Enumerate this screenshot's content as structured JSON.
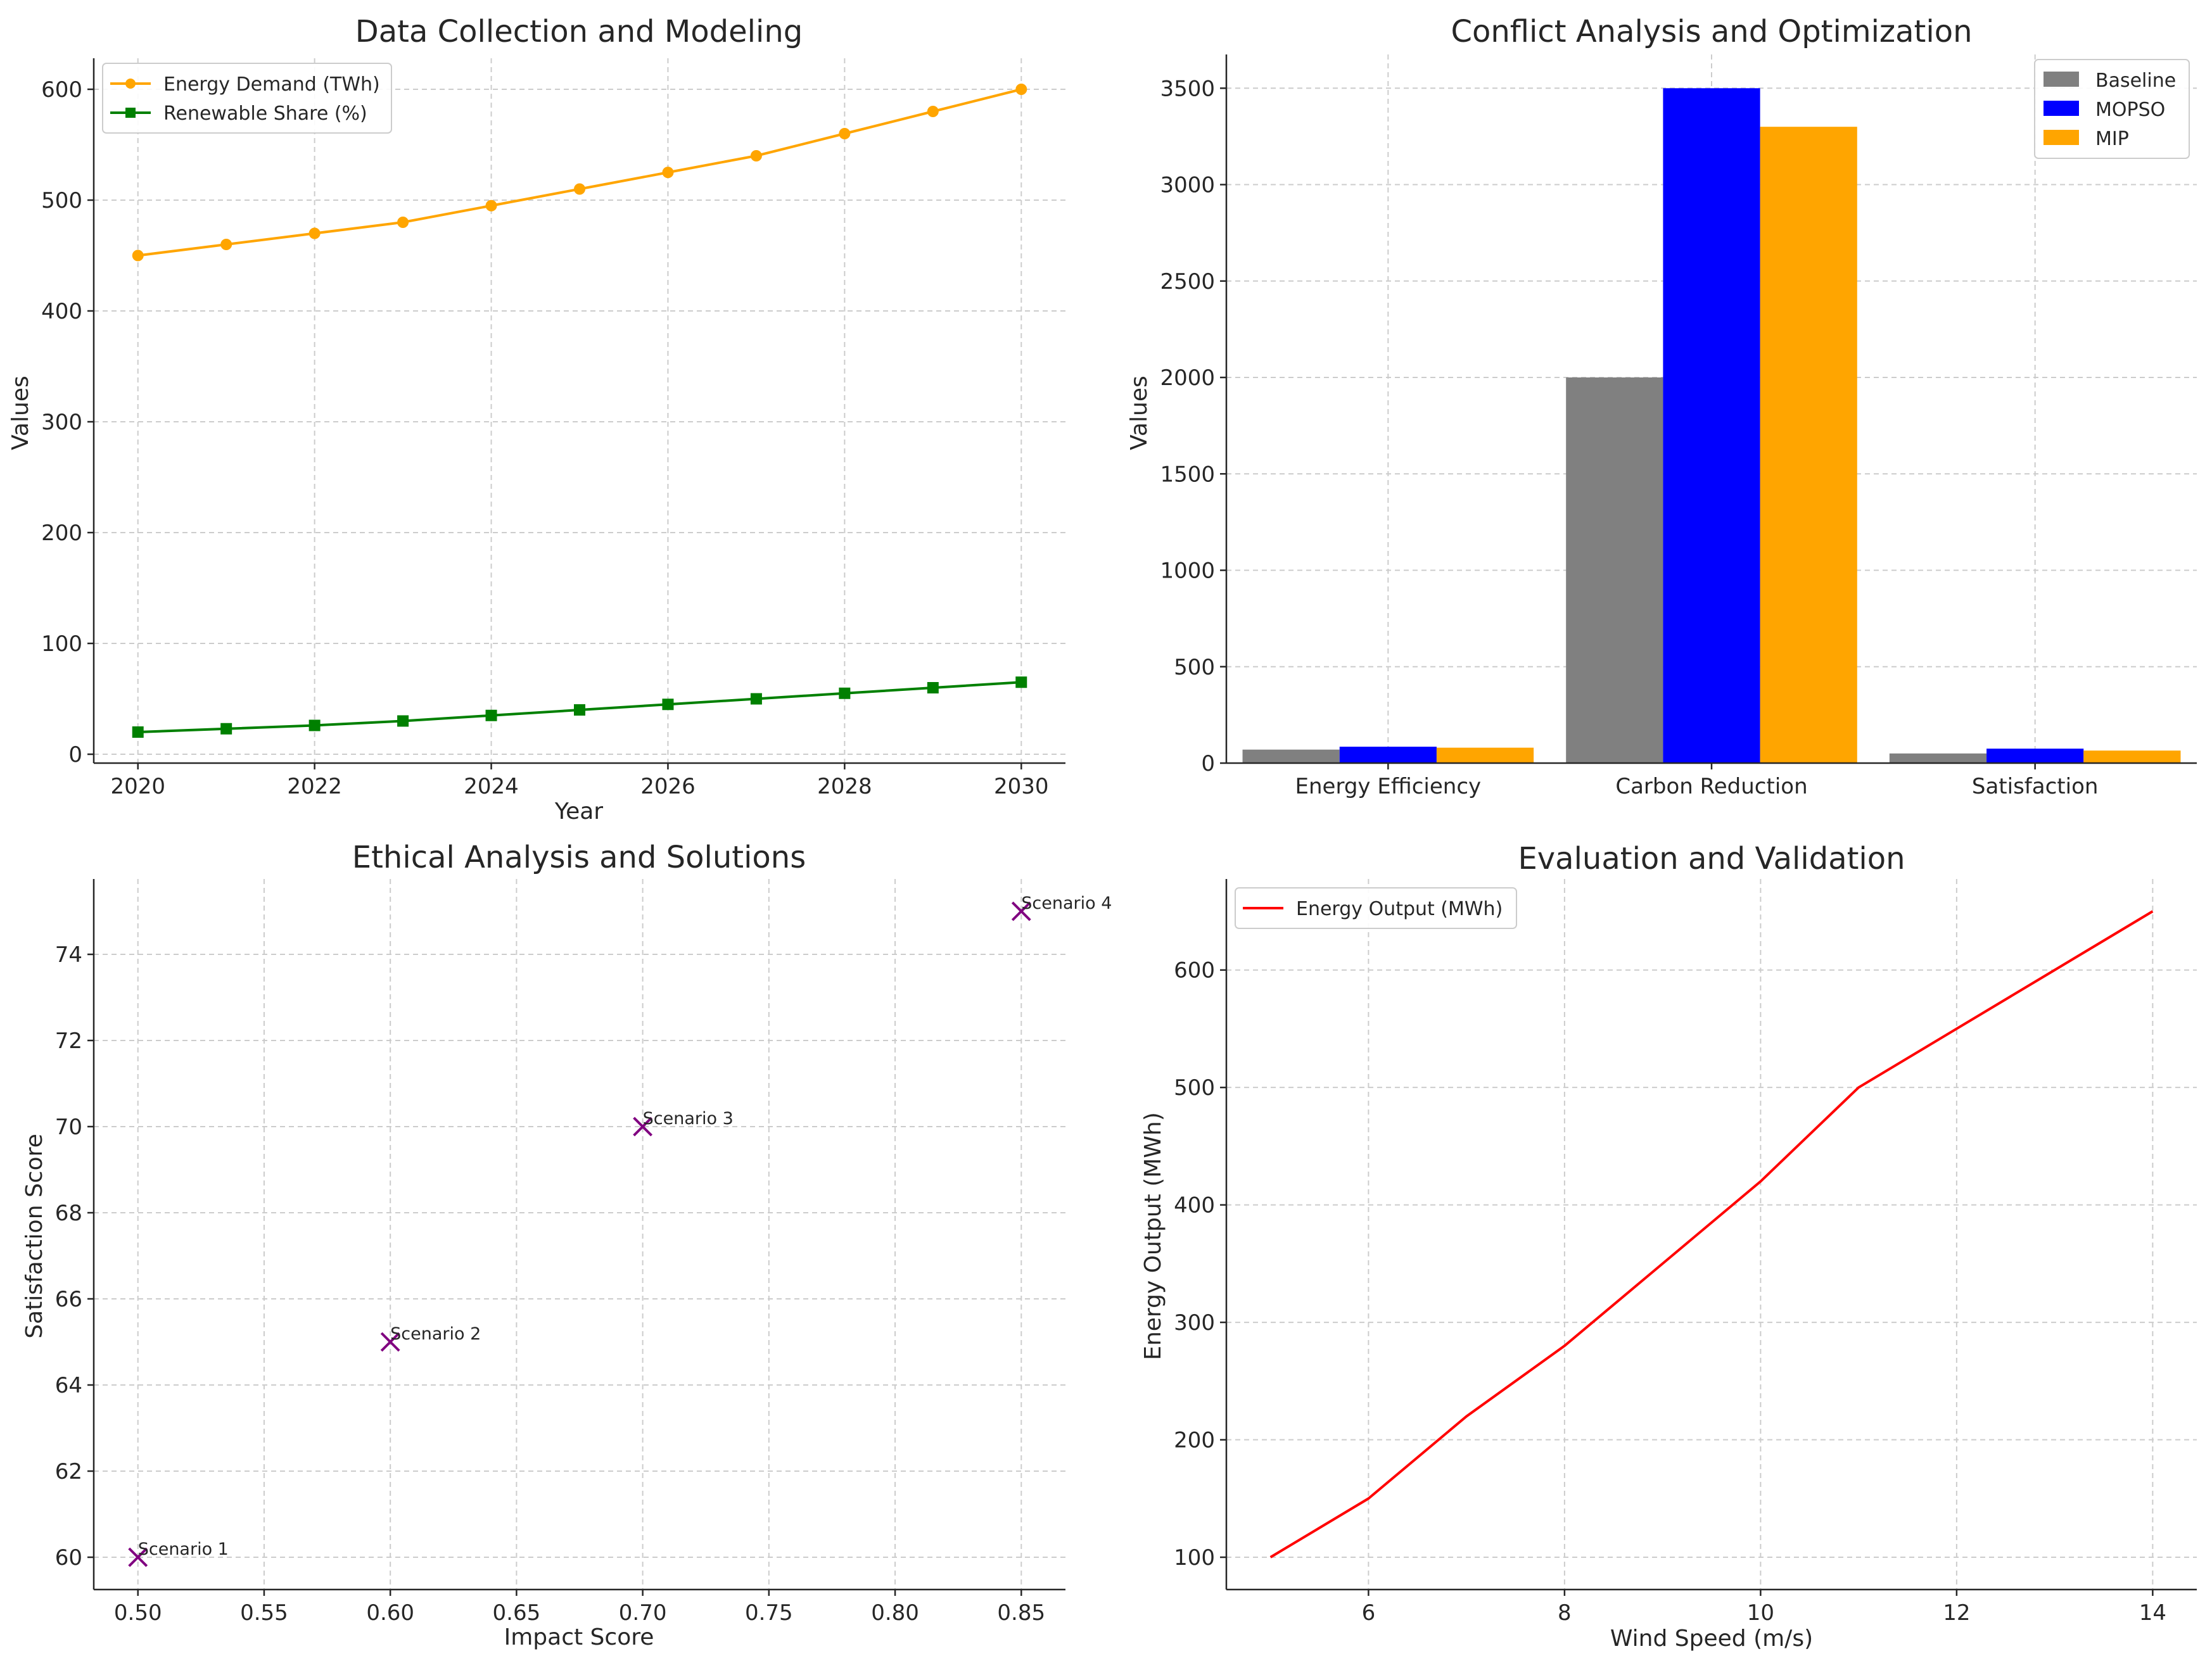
{
  "chart_data": [
    {
      "type": "line",
      "title": "Data Collection and Modeling",
      "xlabel": "Year",
      "ylabel": "Values",
      "x": [
        2020,
        2021,
        2022,
        2023,
        2024,
        2025,
        2026,
        2027,
        2028,
        2029,
        2030
      ],
      "xlim": [
        2019.5,
        2030.5
      ],
      "ylim": [
        -8,
        628
      ],
      "xticks": [
        2020,
        2022,
        2024,
        2026,
        2028,
        2030
      ],
      "yticks": [
        0,
        100,
        200,
        300,
        400,
        500,
        600
      ],
      "grid": true,
      "legend": "top-left",
      "series": [
        {
          "name": "Energy Demand (TWh)",
          "color": "#FFA500",
          "marker": "circle",
          "values": [
            450,
            460,
            470,
            480,
            495,
            510,
            525,
            540,
            560,
            580,
            600
          ]
        },
        {
          "name": "Renewable Share (%)",
          "color": "#008000",
          "marker": "square",
          "values": [
            20,
            23,
            26,
            30,
            35,
            40,
            45,
            50,
            55,
            60,
            65
          ]
        }
      ]
    },
    {
      "type": "bar",
      "title": "Conflict Analysis and Optimization",
      "xlabel": "",
      "ylabel": "Values",
      "categories": [
        "Energy Efficiency",
        "Carbon Reduction",
        "Satisfaction"
      ],
      "ylim": [
        0,
        3675
      ],
      "yticks": [
        0,
        500,
        1000,
        1500,
        2000,
        2500,
        3000,
        3500
      ],
      "grid": true,
      "legend": "top-right",
      "series": [
        {
          "name": "Baseline",
          "color": "#808080",
          "values": [
            70,
            2000,
            50
          ]
        },
        {
          "name": "MOPSO",
          "color": "#0000FF",
          "values": [
            85,
            3500,
            75
          ]
        },
        {
          "name": "MIP",
          "color": "#FFA500",
          "values": [
            80,
            3300,
            65
          ]
        }
      ]
    },
    {
      "type": "scatter",
      "title": "Ethical Analysis and Solutions",
      "xlabel": "Impact Score",
      "ylabel": "Satisfaction Score",
      "xlim": [
        0.4825,
        0.8675
      ],
      "ylim": [
        59.25,
        75.75
      ],
      "xticks": [
        "0.50",
        "0.55",
        "0.60",
        "0.65",
        "0.70",
        "0.75",
        "0.80",
        "0.85"
      ],
      "yticks": [
        60,
        62,
        64,
        66,
        68,
        70,
        72,
        74
      ],
      "grid": true,
      "color": "#800080",
      "marker": "x",
      "points": [
        {
          "x": 0.5,
          "y": 60,
          "label": "Scenario 1"
        },
        {
          "x": 0.6,
          "y": 65,
          "label": "Scenario 2"
        },
        {
          "x": 0.7,
          "y": 70,
          "label": "Scenario 3"
        },
        {
          "x": 0.85,
          "y": 75,
          "label": "Scenario 4"
        }
      ]
    },
    {
      "type": "line",
      "title": "Evaluation and Validation",
      "xlabel": "Wind Speed (m/s)",
      "ylabel": "Energy Output (MWh)",
      "xlim": [
        4.55,
        14.45
      ],
      "ylim": [
        72.5,
        677.5
      ],
      "xticks": [
        6,
        8,
        10,
        12,
        14
      ],
      "yticks": [
        100,
        200,
        300,
        400,
        500,
        600
      ],
      "grid": true,
      "legend": "top-left",
      "series": [
        {
          "name": "Energy Output (MWh)",
          "color": "#FF0000",
          "x": [
            5,
            5.5,
            6,
            7,
            8,
            9,
            10,
            11,
            12,
            13,
            14
          ],
          "values": [
            100,
            125,
            150,
            220,
            280,
            350,
            420,
            500,
            550,
            600,
            650
          ]
        }
      ]
    }
  ]
}
